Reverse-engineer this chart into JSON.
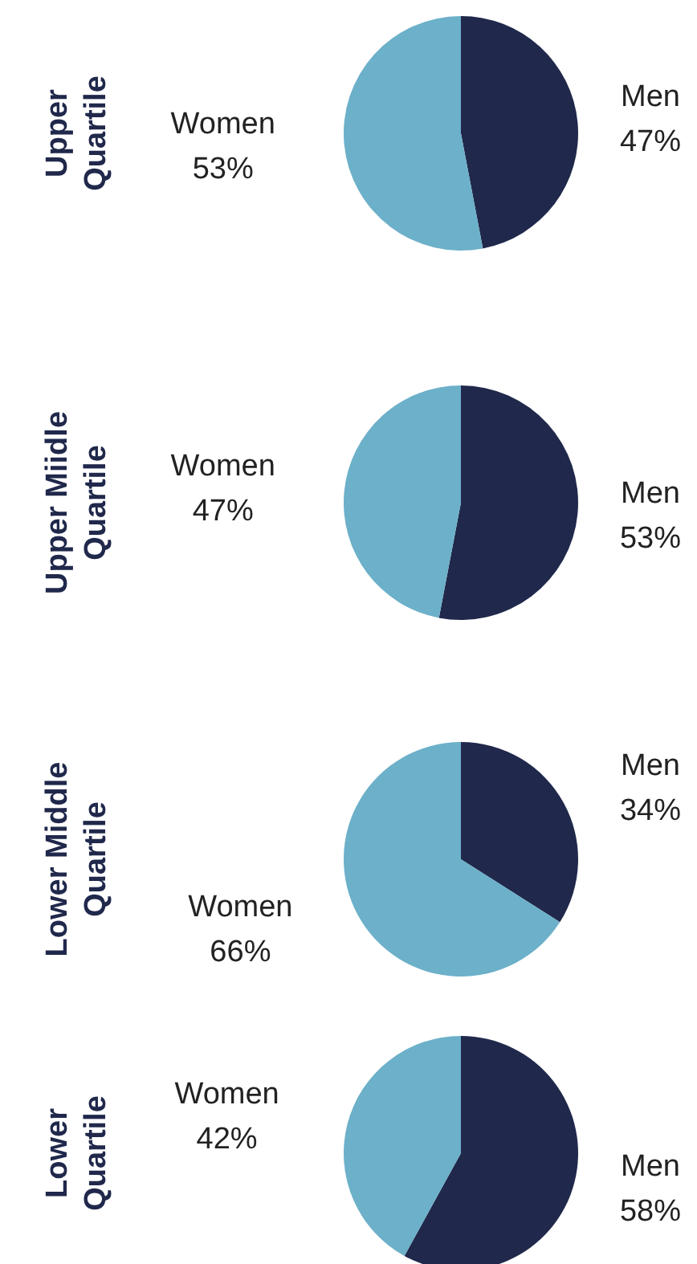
{
  "chart_data": [
    {
      "type": "pie",
      "title": "Upper\nQuartile",
      "categories": [
        "Men",
        "Women"
      ],
      "values": [
        47,
        53
      ],
      "value_labels": [
        "47%",
        "53%"
      ],
      "colors": [
        "#20284b",
        "#6cb0c9"
      ]
    },
    {
      "type": "pie",
      "title": "Upper Miidle\nQuartile",
      "categories": [
        "Men",
        "Women"
      ],
      "values": [
        53,
        47
      ],
      "value_labels": [
        "53%",
        "47%"
      ],
      "colors": [
        "#20284b",
        "#6cb0c9"
      ]
    },
    {
      "type": "pie",
      "title": "Lower Middle\nQuartile",
      "categories": [
        "Men",
        "Women"
      ],
      "values": [
        34,
        66
      ],
      "value_labels": [
        "34%",
        "66%"
      ],
      "colors": [
        "#20284b",
        "#6cb0c9"
      ]
    },
    {
      "type": "pie",
      "title": "Lower\nQuartile",
      "categories": [
        "Men",
        "Women"
      ],
      "values": [
        58,
        42
      ],
      "value_labels": [
        "58%",
        "42%"
      ],
      "colors": [
        "#20284b",
        "#6cb0c9"
      ]
    }
  ]
}
